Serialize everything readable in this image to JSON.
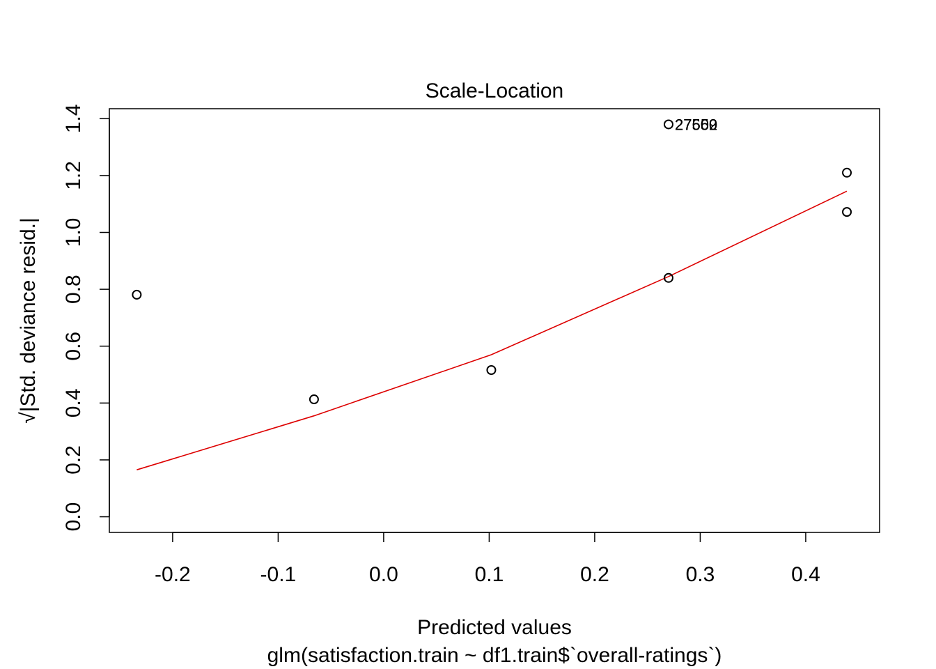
{
  "chart_data": {
    "type": "scatter",
    "title": "Scale-Location",
    "xlabel": "Predicted values",
    "sublabel": "glm(satisfaction.train ~ df1.train$`overall-ratings`)",
    "ylabel": "√|Std. deviance resid.|",
    "xlim": [
      -0.26,
      0.47
    ],
    "ylim": [
      -0.055,
      1.435
    ],
    "x_ticks": [
      -0.2,
      -0.1,
      0.0,
      0.1,
      0.2,
      0.3,
      0.4
    ],
    "x_tick_labels": [
      "-0.2",
      "-0.1",
      "0.0",
      "0.1",
      "0.2",
      "0.3",
      "0.4"
    ],
    "y_ticks": [
      0.0,
      0.2,
      0.4,
      0.6,
      0.8,
      1.0,
      1.2,
      1.4
    ],
    "y_tick_labels": [
      "0.0",
      "0.2",
      "0.4",
      "0.6",
      "0.8",
      "1.0",
      "1.2",
      "1.4"
    ],
    "grid": false,
    "points": [
      {
        "x": -0.234,
        "y": 0.781
      },
      {
        "x": -0.066,
        "y": 0.413
      },
      {
        "x": 0.102,
        "y": 0.516
      },
      {
        "x": 0.27,
        "y": 0.84
      },
      {
        "x": 0.27,
        "y": 1.38
      },
      {
        "x": 0.439,
        "y": 1.21
      },
      {
        "x": 0.439,
        "y": 1.072
      }
    ],
    "annotations": [
      {
        "x": 0.27,
        "y": 1.38,
        "texts": [
          "27600",
          "27559",
          "27562"
        ]
      }
    ],
    "smooth_line": {
      "color": "#dd0000",
      "x": [
        -0.234,
        -0.066,
        0.102,
        0.27,
        0.439
      ],
      "y": [
        0.165,
        0.355,
        0.57,
        0.845,
        1.145
      ]
    }
  }
}
